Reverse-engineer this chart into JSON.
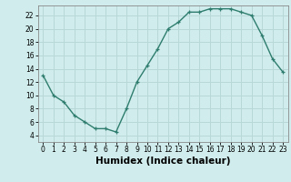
{
  "x": [
    0,
    1,
    2,
    3,
    4,
    5,
    6,
    7,
    8,
    9,
    10,
    11,
    12,
    13,
    14,
    15,
    16,
    17,
    18,
    19,
    20,
    21,
    22,
    23
  ],
  "y": [
    13,
    10,
    9,
    7,
    6,
    5,
    5,
    4.5,
    8,
    12,
    14.5,
    17,
    20,
    21,
    22.5,
    22.5,
    23,
    23,
    23,
    22.5,
    22,
    19,
    15.5,
    13.5
  ],
  "line_color": "#2e7d6e",
  "marker": "+",
  "bg_color": "#d0ecec",
  "grid_color": "#b8d8d8",
  "xlabel": "Humidex (Indice chaleur)",
  "xlim": [
    -0.5,
    23.5
  ],
  "ylim": [
    3,
    23.5
  ],
  "yticks": [
    4,
    6,
    8,
    10,
    12,
    14,
    16,
    18,
    20,
    22
  ],
  "xticks": [
    0,
    1,
    2,
    3,
    4,
    5,
    6,
    7,
    8,
    9,
    10,
    11,
    12,
    13,
    14,
    15,
    16,
    17,
    18,
    19,
    20,
    21,
    22,
    23
  ],
  "tick_fontsize": 5.5,
  "label_fontsize": 7.5
}
